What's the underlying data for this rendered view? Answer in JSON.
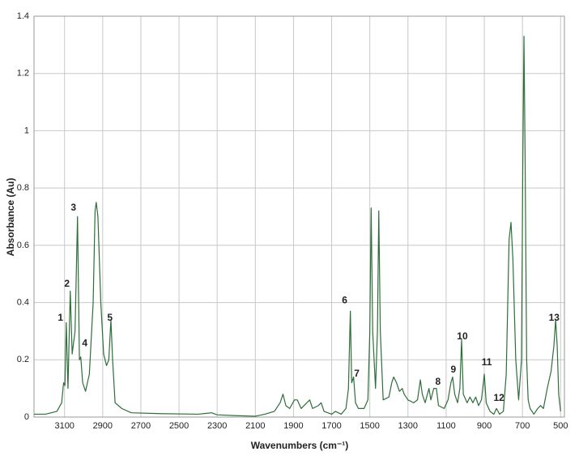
{
  "chart_data": {
    "type": "line",
    "x_label": "Wavenumbers (cm⁻¹)",
    "y_label": "Absorbance (Au)",
    "xlim": [
      3260,
      480
    ],
    "ylim": [
      0,
      1.4
    ],
    "xticks": [
      3100,
      2900,
      2700,
      2500,
      2300,
      2100,
      1900,
      1700,
      1500,
      1300,
      1100,
      900,
      700,
      500
    ],
    "yticks": [
      0,
      0.2,
      0.4,
      0.6,
      0.8,
      1,
      1.2,
      1.4
    ],
    "grid": true,
    "series": [
      {
        "color": "#2e6e3a",
        "x": [
          3260,
          3200,
          3140,
          3115,
          3105,
          3098,
          3091,
          3082,
          3070,
          3060,
          3045,
          3032,
          3022,
          3015,
          3005,
          2990,
          2970,
          2950,
          2940,
          2934,
          2925,
          2910,
          2895,
          2880,
          2868,
          2857,
          2848,
          2835,
          2800,
          2750,
          2600,
          2400,
          2330,
          2300,
          2200,
          2100,
          2050,
          2000,
          1970,
          1955,
          1940,
          1920,
          1895,
          1880,
          1860,
          1830,
          1815,
          1800,
          1770,
          1755,
          1740,
          1700,
          1680,
          1650,
          1625,
          1612,
          1602,
          1595,
          1585,
          1575,
          1560,
          1530,
          1510,
          1500,
          1493,
          1485,
          1470,
          1460,
          1453,
          1445,
          1430,
          1400,
          1385,
          1375,
          1360,
          1345,
          1330,
          1320,
          1300,
          1270,
          1250,
          1235,
          1225,
          1210,
          1190,
          1180,
          1165,
          1151,
          1140,
          1110,
          1090,
          1075,
          1066,
          1055,
          1040,
          1028,
          1019,
          1010,
          990,
          975,
          960,
          945,
          930,
          915,
          908,
          900,
          890,
          870,
          850,
          836,
          820,
          800,
          785,
          770,
          760,
          750,
          735,
          720,
          705,
          698,
          692,
          686,
          678,
          670,
          660,
          640,
          620,
          605,
          590,
          570,
          550,
          535,
          526,
          518,
          510,
          500
        ],
        "values": [
          0.01,
          0.01,
          0.02,
          0.05,
          0.12,
          0.11,
          0.33,
          0.1,
          0.44,
          0.22,
          0.3,
          0.7,
          0.2,
          0.21,
          0.12,
          0.09,
          0.15,
          0.4,
          0.72,
          0.75,
          0.7,
          0.4,
          0.22,
          0.18,
          0.2,
          0.34,
          0.2,
          0.05,
          0.03,
          0.015,
          0.012,
          0.01,
          0.015,
          0.008,
          0.005,
          0.003,
          0.01,
          0.02,
          0.05,
          0.08,
          0.04,
          0.03,
          0.06,
          0.06,
          0.03,
          0.05,
          0.06,
          0.03,
          0.04,
          0.05,
          0.02,
          0.01,
          0.02,
          0.01,
          0.03,
          0.1,
          0.37,
          0.12,
          0.14,
          0.05,
          0.03,
          0.03,
          0.06,
          0.3,
          0.73,
          0.3,
          0.1,
          0.3,
          0.72,
          0.3,
          0.06,
          0.07,
          0.12,
          0.14,
          0.12,
          0.09,
          0.1,
          0.08,
          0.06,
          0.05,
          0.06,
          0.13,
          0.08,
          0.05,
          0.1,
          0.06,
          0.1,
          0.1,
          0.04,
          0.03,
          0.06,
          0.12,
          0.14,
          0.08,
          0.05,
          0.1,
          0.27,
          0.08,
          0.05,
          0.07,
          0.05,
          0.07,
          0.04,
          0.06,
          0.1,
          0.15,
          0.05,
          0.02,
          0.01,
          0.03,
          0.01,
          0.02,
          0.15,
          0.62,
          0.68,
          0.55,
          0.2,
          0.06,
          0.2,
          0.9,
          1.33,
          0.9,
          0.2,
          0.06,
          0.03,
          0.01,
          0.03,
          0.04,
          0.03,
          0.1,
          0.16,
          0.25,
          0.34,
          0.25,
          0.08,
          0.02
        ]
      }
    ],
    "annotations": [
      {
        "text": "1",
        "x": 3121,
        "y": 0.345
      },
      {
        "text": "2",
        "x": 3087,
        "y": 0.464
      },
      {
        "text": "3",
        "x": 3053,
        "y": 0.73
      },
      {
        "text": "4",
        "x": 2994,
        "y": 0.257
      },
      {
        "text": "5",
        "x": 2862,
        "y": 0.345
      },
      {
        "text": "6",
        "x": 1632,
        "y": 0.407
      },
      {
        "text": "7",
        "x": 1568,
        "y": 0.15
      },
      {
        "text": "8",
        "x": 1143,
        "y": 0.122
      },
      {
        "text": "9",
        "x": 1062,
        "y": 0.164
      },
      {
        "text": "10",
        "x": 1015,
        "y": 0.28
      },
      {
        "text": "11",
        "x": 887,
        "y": 0.19
      },
      {
        "text": "12",
        "x": 823,
        "y": 0.065
      },
      {
        "text": "13",
        "x": 534,
        "y": 0.345
      }
    ]
  }
}
